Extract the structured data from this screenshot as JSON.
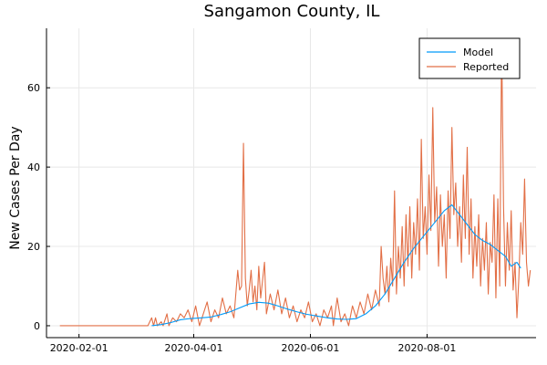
{
  "chart_data": {
    "type": "line",
    "title": "Sangamon County, IL",
    "xlabel": "",
    "ylabel": "New Cases Per Day",
    "x_ticks": [
      "2020-02-01",
      "2020-04-01",
      "2020-06-01",
      "2020-08-01"
    ],
    "y_ticks": [
      0,
      20,
      40,
      60
    ],
    "xlim": [
      "2020-01-15",
      "2020-09-27"
    ],
    "ylim": [
      -3,
      75
    ],
    "grid": true,
    "legend_position": "top-right",
    "colors": {
      "model": "#009af9",
      "reported": "#e26f46"
    },
    "series": [
      {
        "name": "Model",
        "points": [
          [
            "2020-03-10",
            0.0
          ],
          [
            "2020-03-15",
            0.3
          ],
          [
            "2020-03-20",
            0.8
          ],
          [
            "2020-03-25",
            1.5
          ],
          [
            "2020-03-30",
            1.8
          ],
          [
            "2020-04-05",
            2.0
          ],
          [
            "2020-04-10",
            2.2
          ],
          [
            "2020-04-15",
            2.8
          ],
          [
            "2020-04-20",
            3.5
          ],
          [
            "2020-04-25",
            4.5
          ],
          [
            "2020-04-30",
            5.5
          ],
          [
            "2020-05-05",
            5.9
          ],
          [
            "2020-05-10",
            5.7
          ],
          [
            "2020-05-15",
            5.0
          ],
          [
            "2020-05-20",
            4.2
          ],
          [
            "2020-05-25",
            3.5
          ],
          [
            "2020-05-30",
            2.9
          ],
          [
            "2020-06-05",
            2.4
          ],
          [
            "2020-06-10",
            2.0
          ],
          [
            "2020-06-15",
            1.7
          ],
          [
            "2020-06-20",
            1.6
          ],
          [
            "2020-06-25",
            1.8
          ],
          [
            "2020-06-30",
            3.0
          ],
          [
            "2020-07-05",
            5.0
          ],
          [
            "2020-07-10",
            8.0
          ],
          [
            "2020-07-15",
            12.0
          ],
          [
            "2020-07-20",
            16.0
          ],
          [
            "2020-07-25",
            19.5
          ],
          [
            "2020-07-30",
            22.5
          ],
          [
            "2020-08-05",
            26.0
          ],
          [
            "2020-08-10",
            29.0
          ],
          [
            "2020-08-14",
            30.5
          ],
          [
            "2020-08-18",
            28.0
          ],
          [
            "2020-08-22",
            25.5
          ],
          [
            "2020-08-26",
            23.0
          ],
          [
            "2020-08-30",
            21.5
          ],
          [
            "2020-09-03",
            20.5
          ],
          [
            "2020-09-07",
            19.0
          ],
          [
            "2020-09-11",
            17.5
          ],
          [
            "2020-09-14",
            15.0
          ],
          [
            "2020-09-17",
            16.0
          ],
          [
            "2020-09-19",
            14.5
          ]
        ]
      },
      {
        "name": "Reported",
        "points": [
          [
            "2020-01-22",
            0
          ],
          [
            "2020-03-08",
            0
          ],
          [
            "2020-03-10",
            2
          ],
          [
            "2020-03-11",
            0
          ],
          [
            "2020-03-12",
            2
          ],
          [
            "2020-03-13",
            0
          ],
          [
            "2020-03-15",
            1
          ],
          [
            "2020-03-16",
            0
          ],
          [
            "2020-03-18",
            3
          ],
          [
            "2020-03-19",
            0
          ],
          [
            "2020-03-21",
            2
          ],
          [
            "2020-03-23",
            1
          ],
          [
            "2020-03-25",
            3
          ],
          [
            "2020-03-27",
            2
          ],
          [
            "2020-03-29",
            4
          ],
          [
            "2020-03-31",
            1
          ],
          [
            "2020-04-02",
            5
          ],
          [
            "2020-04-04",
            0
          ],
          [
            "2020-04-06",
            3
          ],
          [
            "2020-04-08",
            6
          ],
          [
            "2020-04-10",
            1
          ],
          [
            "2020-04-12",
            4
          ],
          [
            "2020-04-14",
            2
          ],
          [
            "2020-04-16",
            7
          ],
          [
            "2020-04-18",
            3
          ],
          [
            "2020-04-20",
            5
          ],
          [
            "2020-04-22",
            2
          ],
          [
            "2020-04-24",
            14
          ],
          [
            "2020-04-25",
            9
          ],
          [
            "2020-04-26",
            10
          ],
          [
            "2020-04-27",
            46
          ],
          [
            "2020-04-28",
            12
          ],
          [
            "2020-04-29",
            5
          ],
          [
            "2020-04-30",
            9
          ],
          [
            "2020-05-01",
            14
          ],
          [
            "2020-05-02",
            6
          ],
          [
            "2020-05-03",
            10
          ],
          [
            "2020-05-04",
            4
          ],
          [
            "2020-05-05",
            15
          ],
          [
            "2020-05-06",
            7
          ],
          [
            "2020-05-08",
            16
          ],
          [
            "2020-05-09",
            3
          ],
          [
            "2020-05-11",
            8
          ],
          [
            "2020-05-13",
            4
          ],
          [
            "2020-05-15",
            9
          ],
          [
            "2020-05-17",
            3
          ],
          [
            "2020-05-19",
            7
          ],
          [
            "2020-05-21",
            2
          ],
          [
            "2020-05-23",
            5
          ],
          [
            "2020-05-25",
            1
          ],
          [
            "2020-05-27",
            4
          ],
          [
            "2020-05-29",
            2
          ],
          [
            "2020-05-31",
            6
          ],
          [
            "2020-06-02",
            1
          ],
          [
            "2020-06-04",
            3
          ],
          [
            "2020-06-06",
            0
          ],
          [
            "2020-06-08",
            4
          ],
          [
            "2020-06-10",
            2
          ],
          [
            "2020-06-12",
            5
          ],
          [
            "2020-06-13",
            0
          ],
          [
            "2020-06-15",
            7
          ],
          [
            "2020-06-17",
            1
          ],
          [
            "2020-06-19",
            3
          ],
          [
            "2020-06-21",
            0
          ],
          [
            "2020-06-23",
            5
          ],
          [
            "2020-06-25",
            2
          ],
          [
            "2020-06-27",
            6
          ],
          [
            "2020-06-29",
            3
          ],
          [
            "2020-07-01",
            8
          ],
          [
            "2020-07-03",
            4
          ],
          [
            "2020-07-05",
            9
          ],
          [
            "2020-07-07",
            5
          ],
          [
            "2020-07-08",
            20
          ],
          [
            "2020-07-09",
            12
          ],
          [
            "2020-07-10",
            8
          ],
          [
            "2020-07-11",
            15
          ],
          [
            "2020-07-12",
            6
          ],
          [
            "2020-07-13",
            17
          ],
          [
            "2020-07-14",
            10
          ],
          [
            "2020-07-15",
            34
          ],
          [
            "2020-07-16",
            8
          ],
          [
            "2020-07-17",
            20
          ],
          [
            "2020-07-18",
            12
          ],
          [
            "2020-07-19",
            25
          ],
          [
            "2020-07-20",
            10
          ],
          [
            "2020-07-21",
            28
          ],
          [
            "2020-07-22",
            15
          ],
          [
            "2020-07-23",
            30
          ],
          [
            "2020-07-24",
            12
          ],
          [
            "2020-07-25",
            26
          ],
          [
            "2020-07-26",
            18
          ],
          [
            "2020-07-27",
            32
          ],
          [
            "2020-07-28",
            14
          ],
          [
            "2020-07-29",
            47
          ],
          [
            "2020-07-30",
            22
          ],
          [
            "2020-07-31",
            30
          ],
          [
            "2020-08-01",
            18
          ],
          [
            "2020-08-02",
            38
          ],
          [
            "2020-08-03",
            24
          ],
          [
            "2020-08-04",
            55
          ],
          [
            "2020-08-05",
            26
          ],
          [
            "2020-08-06",
            35
          ],
          [
            "2020-08-07",
            15
          ],
          [
            "2020-08-08",
            33
          ],
          [
            "2020-08-09",
            20
          ],
          [
            "2020-08-10",
            28
          ],
          [
            "2020-08-11",
            12
          ],
          [
            "2020-08-12",
            34
          ],
          [
            "2020-08-13",
            22
          ],
          [
            "2020-08-14",
            50
          ],
          [
            "2020-08-15",
            28
          ],
          [
            "2020-08-16",
            36
          ],
          [
            "2020-08-17",
            20
          ],
          [
            "2020-08-18",
            30
          ],
          [
            "2020-08-19",
            16
          ],
          [
            "2020-08-20",
            38
          ],
          [
            "2020-08-21",
            22
          ],
          [
            "2020-08-22",
            45
          ],
          [
            "2020-08-23",
            18
          ],
          [
            "2020-08-24",
            32
          ],
          [
            "2020-08-25",
            12
          ],
          [
            "2020-08-26",
            25
          ],
          [
            "2020-08-27",
            15
          ],
          [
            "2020-08-28",
            28
          ],
          [
            "2020-08-29",
            10
          ],
          [
            "2020-08-30",
            22
          ],
          [
            "2020-08-31",
            14
          ],
          [
            "2020-09-01",
            26
          ],
          [
            "2020-09-02",
            8
          ],
          [
            "2020-09-03",
            21
          ],
          [
            "2020-09-04",
            16
          ],
          [
            "2020-09-05",
            33
          ],
          [
            "2020-09-06",
            7
          ],
          [
            "2020-09-07",
            32
          ],
          [
            "2020-09-08",
            10
          ],
          [
            "2020-09-09",
            72
          ],
          [
            "2020-09-10",
            30
          ],
          [
            "2020-09-11",
            10
          ],
          [
            "2020-09-12",
            26
          ],
          [
            "2020-09-13",
            14
          ],
          [
            "2020-09-14",
            29
          ],
          [
            "2020-09-15",
            9
          ],
          [
            "2020-09-16",
            16
          ],
          [
            "2020-09-17",
            2
          ],
          [
            "2020-09-18",
            12
          ],
          [
            "2020-09-19",
            26
          ],
          [
            "2020-09-20",
            18
          ],
          [
            "2020-09-21",
            37
          ],
          [
            "2020-09-22",
            16
          ],
          [
            "2020-09-23",
            10
          ],
          [
            "2020-09-24",
            14
          ]
        ]
      }
    ]
  }
}
